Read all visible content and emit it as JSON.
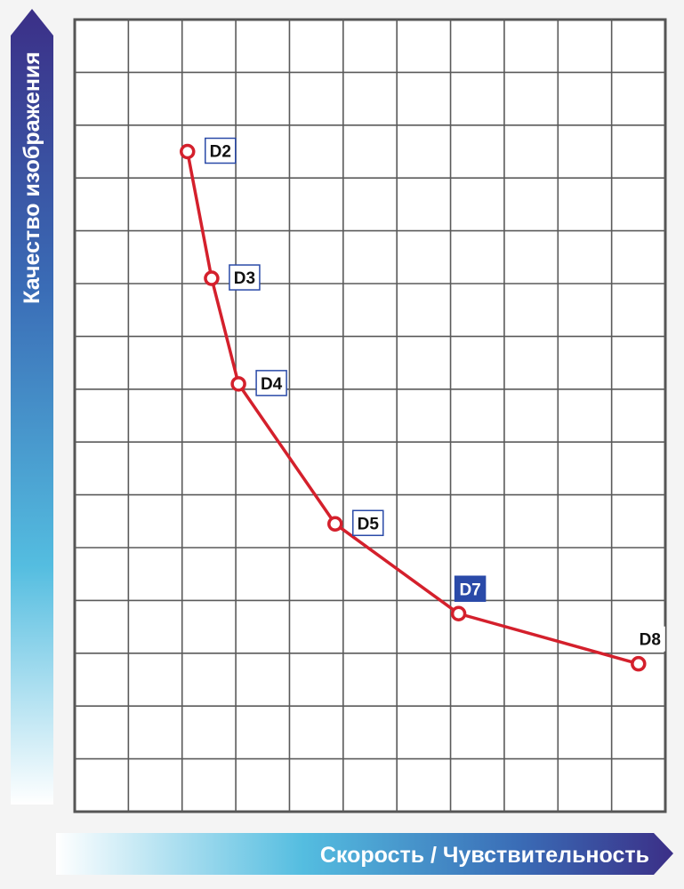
{
  "chart_data": {
    "type": "line",
    "ylabel": "Качество изображения",
    "xlabel": "Скорость / Чувствительность",
    "grid": true,
    "xlim": [
      0,
      11
    ],
    "ylim": [
      0,
      15
    ],
    "series": [
      {
        "color": "#d4202c",
        "points": [
          {
            "label": "D2",
            "x": 2.1,
            "y": 12.5
          },
          {
            "label": "D3",
            "x": 2.55,
            "y": 10.1
          },
          {
            "label": "D4",
            "x": 3.05,
            "y": 8.1
          },
          {
            "label": "D5",
            "x": 4.85,
            "y": 5.45
          },
          {
            "label": "D7",
            "x": 7.15,
            "y": 3.75
          },
          {
            "label": "D8",
            "x": 10.5,
            "y": 2.8
          }
        ]
      }
    ],
    "highlighted_label": "D7",
    "colors": {
      "line": "#d4202c",
      "grid": "#5a5a5a",
      "highlight_bg": "#2a4aa8",
      "label_border": "#2a4aa8"
    }
  }
}
